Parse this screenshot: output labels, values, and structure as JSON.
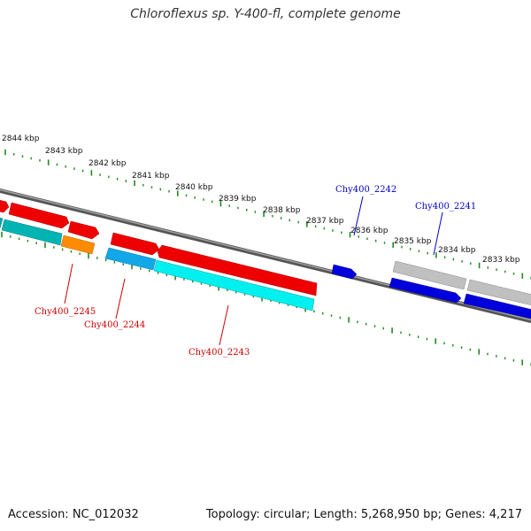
{
  "title": "Chloroflexus sp. Y-400-fl, complete genome",
  "colors": {
    "backbone": "#777777",
    "ticks": "#1f8a1f",
    "forward_cds": "#ee0000",
    "reverse_cds": "#00e0e0",
    "orange_gene": "#ff8c00",
    "highlight_blue": "#0000dd",
    "pseudo_gray": "#bbbbbb",
    "label_red": "#cc0000",
    "label_blue": "#0000cc"
  },
  "kbp_labels": [
    "2844 kbp",
    "2843 kbp",
    "2842 kbp",
    "2841 kbp",
    "2840 kbp",
    "2839 kbp",
    "2838 kbp",
    "2837 kbp",
    "2836 kbp",
    "2835 kbp",
    "2834 kbp",
    "2833 kbp"
  ],
  "gene_labels": {
    "g2242": "Chy400_2242",
    "g2241": "Chy400_2241",
    "g2245": "Chy400_2245",
    "g2244": "Chy400_2244",
    "g2243": "Chy400_2243"
  },
  "footer": {
    "accession": "Accession: NC_012032",
    "topology": "Topology: circular; Length: 5,268,950 bp; Genes: 4,217"
  }
}
